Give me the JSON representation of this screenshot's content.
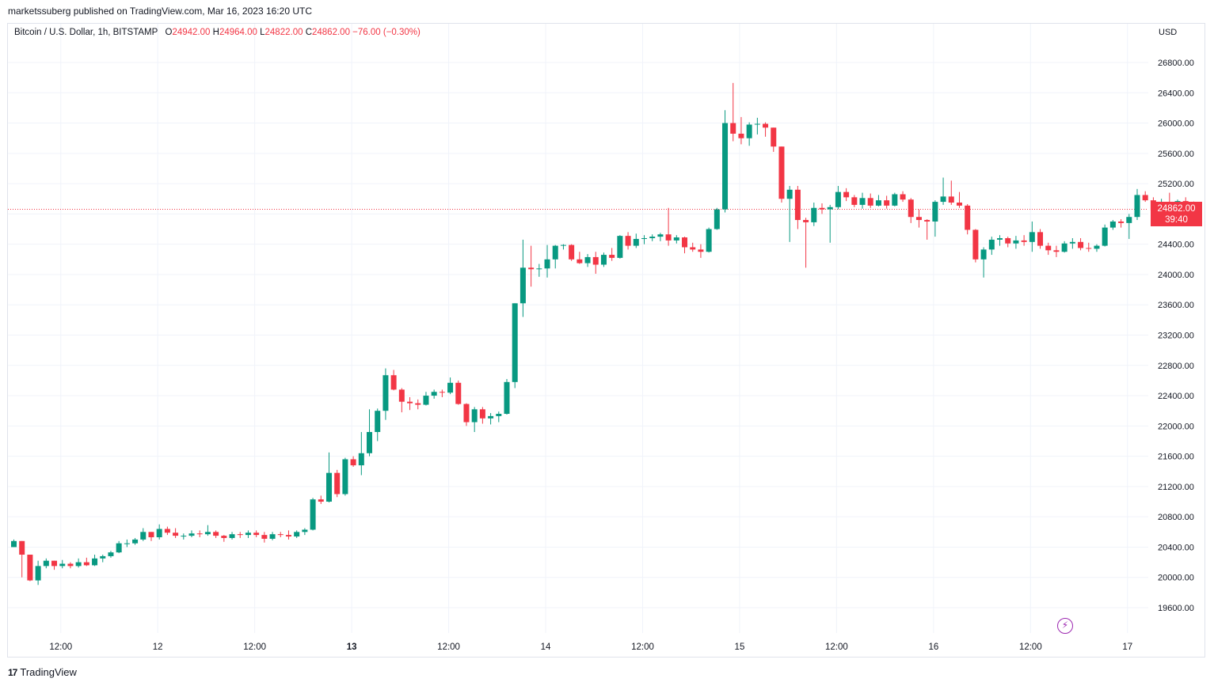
{
  "header": {
    "published": "marketssuberg published on TradingView.com, Mar 16, 2023 16:20 UTC"
  },
  "legend": {
    "symbol": "Bitcoin / U.S. Dollar, 1h, BITSTAMP",
    "o_label": "O",
    "o_value": "24942.00",
    "h_label": "H",
    "h_value": "24964.00",
    "l_label": "L",
    "l_value": "24822.00",
    "c_label": "C",
    "c_value": "24862.00",
    "change": "−76.00 (−0.30%)"
  },
  "price_axis": {
    "currency": "USD"
  },
  "last_price": {
    "value": "24862.00",
    "countdown": "39:40",
    "color": "#f23645"
  },
  "footer": {
    "brand": "TradingView",
    "logo_icon": "tradingview-logo-icon"
  },
  "flash_icon": "lightning-icon",
  "colors": {
    "up": "#089981",
    "down": "#f23645",
    "grid": "#f0f3fa",
    "price_line": "#f23645"
  },
  "chart_data": {
    "type": "candlestick",
    "interval": "1h",
    "grid": true,
    "ylim": [
      19350,
      27000
    ],
    "y_ticks": [
      19600,
      20000,
      20400,
      20800,
      21200,
      21600,
      22000,
      22400,
      22800,
      23200,
      23600,
      24000,
      24400,
      24800,
      25200,
      25600,
      26000,
      26400,
      26800
    ],
    "y_tick_labels": [
      "19600.00",
      "20000.00",
      "20400.00",
      "20800.00",
      "21200.00",
      "21600.00",
      "22000.00",
      "22400.00",
      "22800.00",
      "23200.00",
      "23600.00",
      "24000.00",
      "24400.00",
      "24800.00",
      "25200.00",
      "25600.00",
      "26000.00",
      "26400.00",
      "26800.00"
    ],
    "x_ticks": [
      {
        "label": "12:00",
        "bar": 6,
        "bold": false
      },
      {
        "label": "12",
        "bar": 18,
        "bold": false
      },
      {
        "label": "12:00",
        "bar": 30,
        "bold": false
      },
      {
        "label": "13",
        "bar": 42,
        "bold": true
      },
      {
        "label": "12:00",
        "bar": 54,
        "bold": false
      },
      {
        "label": "14",
        "bar": 66,
        "bold": false
      },
      {
        "label": "12:00",
        "bar": 78,
        "bold": false
      },
      {
        "label": "15",
        "bar": 90,
        "bold": false
      },
      {
        "label": "12:00",
        "bar": 102,
        "bold": false
      },
      {
        "label": "16",
        "bar": 114,
        "bold": false
      },
      {
        "label": "12:00",
        "bar": 126,
        "bold": false
      },
      {
        "label": "17",
        "bar": 138,
        "bold": false
      }
    ],
    "last_price": 24862,
    "candles": [
      [
        20400,
        20500,
        20400,
        20480
      ],
      [
        20480,
        20480,
        20000,
        20300
      ],
      [
        20300,
        20300,
        19950,
        19960
      ],
      [
        19960,
        20220,
        19900,
        20150
      ],
      [
        20150,
        20250,
        20120,
        20220
      ],
      [
        20220,
        20220,
        20100,
        20150
      ],
      [
        20150,
        20230,
        20120,
        20180
      ],
      [
        20180,
        20200,
        20120,
        20150
      ],
      [
        20150,
        20250,
        20130,
        20200
      ],
      [
        20200,
        20260,
        20150,
        20160
      ],
      [
        20160,
        20300,
        20150,
        20250
      ],
      [
        20250,
        20300,
        20200,
        20280
      ],
      [
        20280,
        20350,
        20260,
        20330
      ],
      [
        20330,
        20480,
        20320,
        20450
      ],
      [
        20450,
        20500,
        20400,
        20450
      ],
      [
        20450,
        20520,
        20430,
        20500
      ],
      [
        20500,
        20650,
        20480,
        20600
      ],
      [
        20600,
        20600,
        20480,
        20530
      ],
      [
        20530,
        20700,
        20500,
        20640
      ],
      [
        20640,
        20670,
        20560,
        20590
      ],
      [
        20590,
        20650,
        20520,
        20550
      ],
      [
        20550,
        20580,
        20500,
        20550
      ],
      [
        20550,
        20620,
        20530,
        20580
      ],
      [
        20580,
        20620,
        20530,
        20570
      ],
      [
        20570,
        20690,
        20550,
        20600
      ],
      [
        20600,
        20620,
        20520,
        20550
      ],
      [
        20550,
        20560,
        20470,
        20520
      ],
      [
        20520,
        20600,
        20500,
        20570
      ],
      [
        20570,
        20600,
        20520,
        20560
      ],
      [
        20560,
        20620,
        20520,
        20590
      ],
      [
        20590,
        20620,
        20530,
        20560
      ],
      [
        20560,
        20600,
        20460,
        20510
      ],
      [
        20510,
        20600,
        20490,
        20570
      ],
      [
        20570,
        20600,
        20530,
        20560
      ],
      [
        20560,
        20620,
        20500,
        20540
      ],
      [
        20540,
        20620,
        20520,
        20600
      ],
      [
        20600,
        20650,
        20560,
        20630
      ],
      [
        20630,
        21050,
        20620,
        21030
      ],
      [
        21030,
        21080,
        20970,
        21000
      ],
      [
        21000,
        21650,
        20990,
        21380
      ],
      [
        21380,
        21420,
        21060,
        21100
      ],
      [
        21100,
        21580,
        21080,
        21560
      ],
      [
        21560,
        21600,
        21460,
        21480
      ],
      [
        21480,
        21920,
        21350,
        21640
      ],
      [
        21640,
        22220,
        21600,
        21920
      ],
      [
        21920,
        22230,
        21800,
        22200
      ],
      [
        22200,
        22760,
        22080,
        22670
      ],
      [
        22670,
        22740,
        22470,
        22480
      ],
      [
        22480,
        22500,
        22180,
        22320
      ],
      [
        22320,
        22380,
        22210,
        22300
      ],
      [
        22300,
        22350,
        22220,
        22280
      ],
      [
        22280,
        22450,
        22270,
        22400
      ],
      [
        22400,
        22480,
        22360,
        22450
      ],
      [
        22450,
        22480,
        22380,
        22440
      ],
      [
        22440,
        22640,
        22420,
        22570
      ],
      [
        22570,
        22600,
        22280,
        22290
      ],
      [
        22290,
        22300,
        22000,
        22050
      ],
      [
        22050,
        22250,
        21920,
        22220
      ],
      [
        22220,
        22250,
        22030,
        22100
      ],
      [
        22100,
        22170,
        22020,
        22130
      ],
      [
        22130,
        22190,
        22050,
        22160
      ],
      [
        22160,
        22620,
        22150,
        22580
      ],
      [
        22580,
        23620,
        22500,
        23620
      ],
      [
        23620,
        24460,
        23440,
        24090
      ],
      [
        24090,
        24380,
        23840,
        24070
      ],
      [
        24070,
        24140,
        23970,
        24080
      ],
      [
        24080,
        24390,
        23960,
        24200
      ],
      [
        24200,
        24390,
        24080,
        24380
      ],
      [
        24380,
        24400,
        24330,
        24390
      ],
      [
        24390,
        24400,
        24180,
        24200
      ],
      [
        24200,
        24300,
        24140,
        24150
      ],
      [
        24150,
        24270,
        24100,
        24230
      ],
      [
        24230,
        24300,
        24010,
        24130
      ],
      [
        24130,
        24290,
        24100,
        24260
      ],
      [
        24260,
        24350,
        24180,
        24220
      ],
      [
        24220,
        24520,
        24210,
        24510
      ],
      [
        24510,
        24560,
        24330,
        24380
      ],
      [
        24380,
        24540,
        24350,
        24470
      ],
      [
        24470,
        24520,
        24400,
        24480
      ],
      [
        24480,
        24530,
        24440,
        24500
      ],
      [
        24500,
        24550,
        24440,
        24530
      ],
      [
        24530,
        24880,
        24380,
        24450
      ],
      [
        24450,
        24520,
        24410,
        24490
      ],
      [
        24490,
        24500,
        24280,
        24360
      ],
      [
        24360,
        24420,
        24300,
        24330
      ],
      [
        24330,
        24400,
        24220,
        24300
      ],
      [
        24300,
        24620,
        24290,
        24600
      ],
      [
        24600,
        24880,
        24590,
        24860
      ],
      [
        24860,
        26170,
        24820,
        26000
      ],
      [
        26000,
        26530,
        25760,
        25860
      ],
      [
        25860,
        26080,
        25720,
        25800
      ],
      [
        25800,
        26010,
        25700,
        25980
      ],
      [
        25980,
        26070,
        25850,
        25990
      ],
      [
        25990,
        26010,
        25820,
        25940
      ],
      [
        25940,
        25940,
        25620,
        25690
      ],
      [
        25690,
        25690,
        24950,
        25000
      ],
      [
        25000,
        25170,
        24430,
        25120
      ],
      [
        25120,
        25170,
        24600,
        24720
      ],
      [
        24720,
        24750,
        24090,
        24690
      ],
      [
        24690,
        24950,
        24640,
        24880
      ],
      [
        24880,
        24940,
        24800,
        24860
      ],
      [
        24860,
        24920,
        24420,
        24890
      ],
      [
        24890,
        25170,
        24860,
        25090
      ],
      [
        25090,
        25140,
        24970,
        25020
      ],
      [
        25020,
        25050,
        24890,
        24920
      ],
      [
        24920,
        25080,
        24870,
        25010
      ],
      [
        25010,
        25070,
        24880,
        24910
      ],
      [
        24910,
        25050,
        24900,
        24980
      ],
      [
        24980,
        25040,
        24870,
        24910
      ],
      [
        24910,
        25080,
        24900,
        25060
      ],
      [
        25060,
        25100,
        24960,
        24990
      ],
      [
        24990,
        25010,
        24680,
        24760
      ],
      [
        24760,
        24860,
        24620,
        24720
      ],
      [
        24720,
        24730,
        24460,
        24700
      ],
      [
        24700,
        24980,
        24500,
        24960
      ],
      [
        24960,
        25280,
        24920,
        25030
      ],
      [
        25030,
        25240,
        24920,
        24950
      ],
      [
        24950,
        25090,
        24880,
        24910
      ],
      [
        24910,
        24930,
        24530,
        24590
      ],
      [
        24590,
        24600,
        24160,
        24200
      ],
      [
        24200,
        24360,
        23960,
        24330
      ],
      [
        24330,
        24500,
        24260,
        24460
      ],
      [
        24460,
        24520,
        24380,
        24480
      ],
      [
        24480,
        24500,
        24360,
        24410
      ],
      [
        24410,
        24510,
        24340,
        24450
      ],
      [
        24450,
        24520,
        24380,
        24430
      ],
      [
        24430,
        24700,
        24300,
        24560
      ],
      [
        24560,
        24600,
        24340,
        24380
      ],
      [
        24380,
        24420,
        24260,
        24320
      ],
      [
        24320,
        24380,
        24230,
        24300
      ],
      [
        24300,
        24440,
        24290,
        24410
      ],
      [
        24410,
        24480,
        24340,
        24430
      ],
      [
        24430,
        24480,
        24320,
        24350
      ],
      [
        24350,
        24420,
        24300,
        24340
      ],
      [
        24340,
        24400,
        24300,
        24380
      ],
      [
        24380,
        24660,
        24370,
        24620
      ],
      [
        24620,
        24720,
        24590,
        24700
      ],
      [
        24700,
        24730,
        24620,
        24680
      ],
      [
        24680,
        24800,
        24470,
        24760
      ],
      [
        24760,
        25130,
        24720,
        25050
      ],
      [
        25050,
        25100,
        24960,
        24980
      ],
      [
        24980,
        25020,
        24800,
        24850
      ],
      [
        24850,
        25000,
        24660,
        24960
      ],
      [
        24960,
        25080,
        24840,
        24950
      ],
      [
        24950,
        24990,
        24800,
        24970
      ],
      [
        24970,
        25020,
        24830,
        24940
      ],
      [
        24942,
        24964,
        24822,
        24862
      ]
    ]
  }
}
